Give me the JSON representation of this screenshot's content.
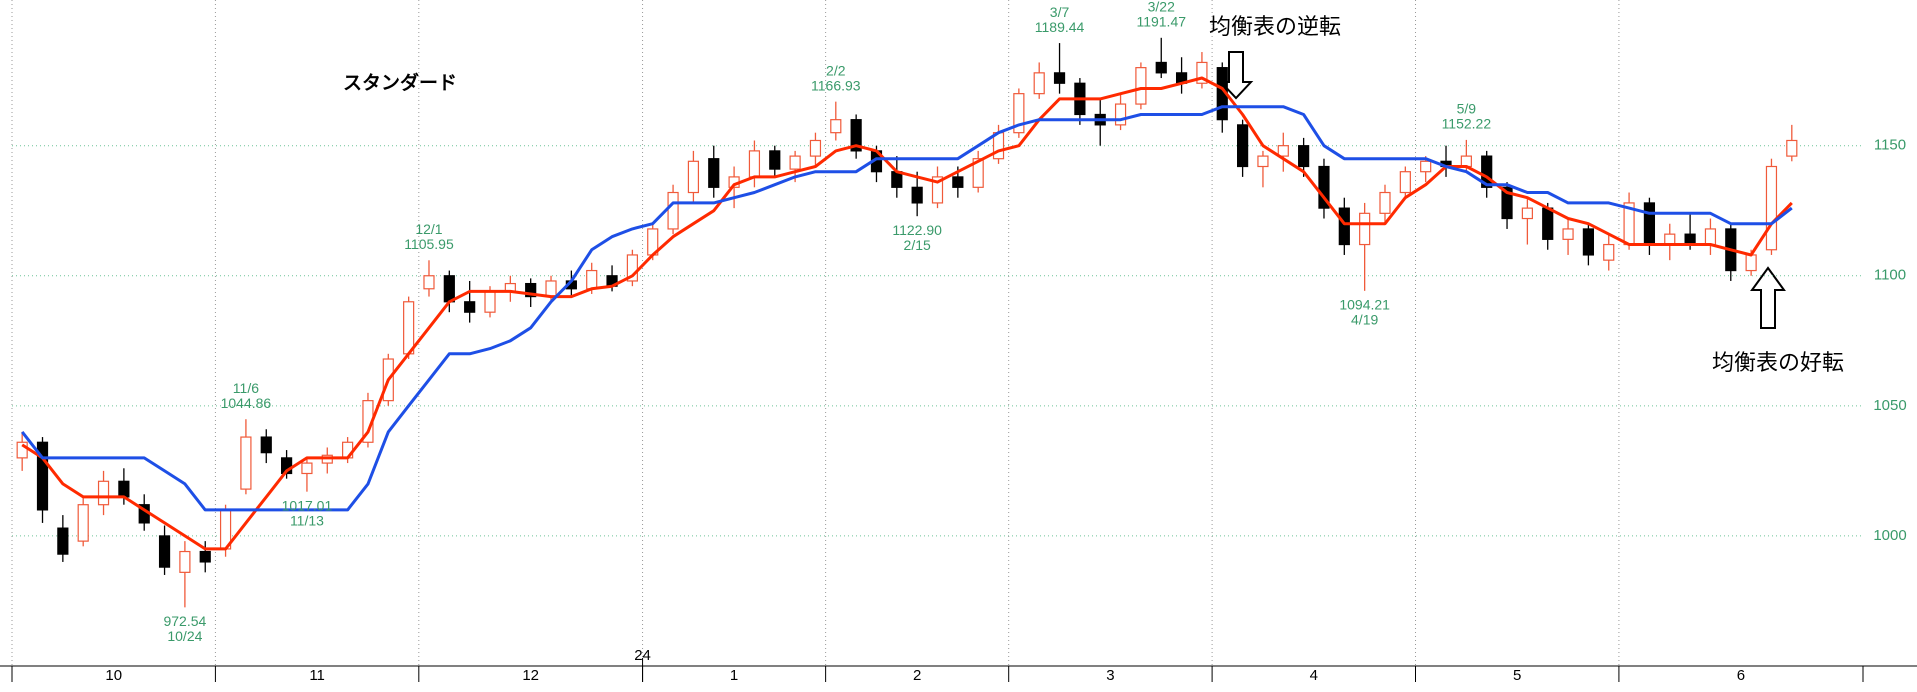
{
  "chart_data": {
    "type": "candlestick",
    "title": "スタンダード",
    "xlim": [
      0,
      91
    ],
    "ylim": [
      950,
      1206
    ],
    "yticks": [
      1000,
      1050,
      1100,
      1150
    ],
    "months": [
      {
        "value": 0,
        "label": "10"
      },
      {
        "value": 10,
        "label": "11"
      },
      {
        "value": 20,
        "label": "12"
      },
      {
        "value": 31,
        "label": "1"
      },
      {
        "value": 40,
        "label": "2"
      },
      {
        "value": 49,
        "label": "3"
      },
      {
        "value": 59,
        "label": "4"
      },
      {
        "value": 69,
        "label": "5"
      },
      {
        "value": 79,
        "label": "6"
      }
    ],
    "year_ticks": [
      {
        "value": 31,
        "label": "24"
      }
    ],
    "up_color": "#f05a3a",
    "down_color": "#000000",
    "open": [
      1030,
      1036,
      1003,
      998,
      1012,
      1021,
      1012,
      1000,
      986,
      994,
      995,
      1018,
      1038,
      1030,
      1024,
      1028,
      1030,
      1036,
      1052,
      1070,
      1095,
      1100,
      1090,
      1086,
      1094,
      1097,
      1092,
      1098,
      1095,
      1100,
      1098,
      1108,
      1118,
      1132,
      1145,
      1134,
      1138,
      1148,
      1141,
      1146,
      1155,
      1160,
      1148,
      1140,
      1134,
      1128,
      1138,
      1134,
      1145,
      1155,
      1170,
      1178,
      1174,
      1162,
      1158,
      1166,
      1182,
      1178,
      1174,
      1180,
      1158,
      1142,
      1146,
      1150,
      1142,
      1126,
      1112,
      1124,
      1132,
      1140,
      1144,
      1142,
      1146,
      1134,
      1122,
      1126,
      1114,
      1118,
      1106,
      1112,
      1128,
      1112,
      1116,
      1112,
      1118,
      1102,
      1110,
      1146
    ],
    "high": [
      1040,
      1038,
      1008,
      1015,
      1025,
      1026,
      1016,
      1004,
      998,
      998,
      1012,
      1044.86,
      1041,
      1033,
      1030,
      1034,
      1038,
      1055,
      1070,
      1092,
      1105.95,
      1102,
      1098,
      1096,
      1100,
      1099,
      1100,
      1102,
      1105,
      1104,
      1110,
      1120,
      1135,
      1148,
      1150,
      1142,
      1152,
      1150,
      1148,
      1155,
      1166.93,
      1162,
      1150,
      1146,
      1140,
      1142,
      1142,
      1148,
      1158,
      1172,
      1182,
      1189.44,
      1176,
      1168,
      1170,
      1182,
      1191.47,
      1184,
      1186,
      1182,
      1160,
      1148,
      1155,
      1153,
      1145,
      1130,
      1128,
      1135,
      1142,
      1146,
      1150,
      1152.22,
      1148,
      1136,
      1130,
      1128,
      1122,
      1120,
      1116,
      1132,
      1130,
      1120,
      1124,
      1122,
      1120,
      1110,
      1145,
      1158
    ],
    "low": [
      1025,
      1005,
      990,
      996,
      1008,
      1012,
      1002,
      985,
      972.54,
      986,
      992,
      1016,
      1028,
      1022,
      1017.01,
      1024,
      1028,
      1034,
      1050,
      1068,
      1092,
      1086,
      1082,
      1084,
      1090,
      1088,
      1090,
      1092,
      1093,
      1094,
      1096,
      1106,
      1116,
      1128,
      1130,
      1126,
      1134,
      1138,
      1136,
      1142,
      1152,
      1145,
      1136,
      1130,
      1122.9,
      1126,
      1130,
      1132,
      1143,
      1153,
      1168,
      1170,
      1158,
      1150,
      1156,
      1164,
      1176,
      1170,
      1172,
      1155,
      1138,
      1134,
      1140,
      1138,
      1122,
      1108,
      1094.21,
      1120,
      1130,
      1136,
      1138,
      1140,
      1130,
      1118,
      1112,
      1110,
      1108,
      1104,
      1102,
      1110,
      1108,
      1106,
      1110,
      1108,
      1098,
      1100,
      1108,
      1144
    ],
    "close": [
      1036,
      1010,
      993,
      1012,
      1021,
      1015,
      1005,
      988,
      994,
      990,
      1010,
      1038,
      1032,
      1024,
      1028,
      1031,
      1036,
      1052,
      1068,
      1090,
      1100,
      1090,
      1086,
      1094,
      1097,
      1092,
      1098,
      1095,
      1102,
      1096,
      1108,
      1118,
      1132,
      1144,
      1134,
      1138,
      1148,
      1141,
      1146,
      1152,
      1160,
      1148,
      1140,
      1134,
      1128,
      1138,
      1134,
      1145,
      1155,
      1170,
      1178,
      1174,
      1162,
      1158,
      1166,
      1180,
      1178,
      1174,
      1182,
      1160,
      1142,
      1146,
      1150,
      1142,
      1126,
      1112,
      1124,
      1132,
      1140,
      1144,
      1142,
      1146,
      1134,
      1122,
      1126,
      1114,
      1118,
      1108,
      1112,
      1128,
      1112,
      1116,
      1112,
      1118,
      1102,
      1108,
      1142,
      1152
    ],
    "lines": [
      {
        "color": "#ff2a00",
        "values": [
          1035,
          1030,
          1020,
          1015,
          1015,
          1015,
          1010,
          1005,
          1000,
          995,
          995,
          1005,
          1015,
          1025,
          1030,
          1030,
          1030,
          1040,
          1060,
          1070,
          1080,
          1090,
          1094,
          1094,
          1094,
          1093,
          1092,
          1092,
          1095,
          1096,
          1100,
          1108,
          1115,
          1120,
          1125,
          1135,
          1138,
          1138,
          1140,
          1142,
          1148,
          1150,
          1148,
          1140,
          1138,
          1136,
          1140,
          1144,
          1148,
          1150,
          1160,
          1168,
          1168,
          1168,
          1170,
          1172,
          1172,
          1174,
          1176,
          1172,
          1162,
          1150,
          1145,
          1140,
          1130,
          1120,
          1120,
          1120,
          1130,
          1135,
          1142,
          1142,
          1138,
          1132,
          1130,
          1126,
          1122,
          1120,
          1116,
          1112,
          1112,
          1112,
          1112,
          1112,
          1110,
          1108,
          1120,
          1128
        ]
      },
      {
        "color": "#1e4fe6",
        "values": [
          1040,
          1030,
          1030,
          1030,
          1030,
          1030,
          1030,
          1025,
          1020,
          1010,
          1010,
          1010,
          1010,
          1010,
          1010,
          1010,
          1010,
          1020,
          1040,
          1050,
          1060,
          1070,
          1070,
          1072,
          1075,
          1080,
          1090,
          1098,
          1110,
          1115,
          1118,
          1120,
          1128,
          1128,
          1128,
          1130,
          1132,
          1135,
          1138,
          1140,
          1140,
          1140,
          1145,
          1145,
          1145,
          1145,
          1145,
          1150,
          1155,
          1158,
          1160,
          1160,
          1160,
          1160,
          1160,
          1162,
          1162,
          1162,
          1162,
          1165,
          1165,
          1165,
          1165,
          1162,
          1150,
          1145,
          1145,
          1145,
          1145,
          1145,
          1142,
          1140,
          1135,
          1135,
          1132,
          1132,
          1128,
          1128,
          1128,
          1126,
          1124,
          1124,
          1124,
          1124,
          1120,
          1120,
          1120,
          1126
        ]
      }
    ],
    "annotations": [
      {
        "date": "10/24",
        "value": 972.54,
        "side": "low"
      },
      {
        "date": "11/6",
        "value": 1044.86,
        "side": "high"
      },
      {
        "date": "11/13",
        "value": 1017.01,
        "side": "low"
      },
      {
        "date": "12/1",
        "value": 1105.95,
        "side": "high"
      },
      {
        "date": "2/2",
        "value": 1166.93,
        "side": "high"
      },
      {
        "date": "2/15",
        "value": 1122.9,
        "value_label": "1122.90",
        "side": "low"
      },
      {
        "date": "3/7",
        "value": 1189.44,
        "side": "high"
      },
      {
        "date": "3/22",
        "value": 1191.47,
        "side": "high"
      },
      {
        "date": "4/19",
        "value": 1094.21,
        "side": "low"
      },
      {
        "date": "5/9",
        "value": 1152.22,
        "side": "high"
      }
    ],
    "notes": [
      "均衡表の逆転",
      "均衡表の好転"
    ]
  }
}
